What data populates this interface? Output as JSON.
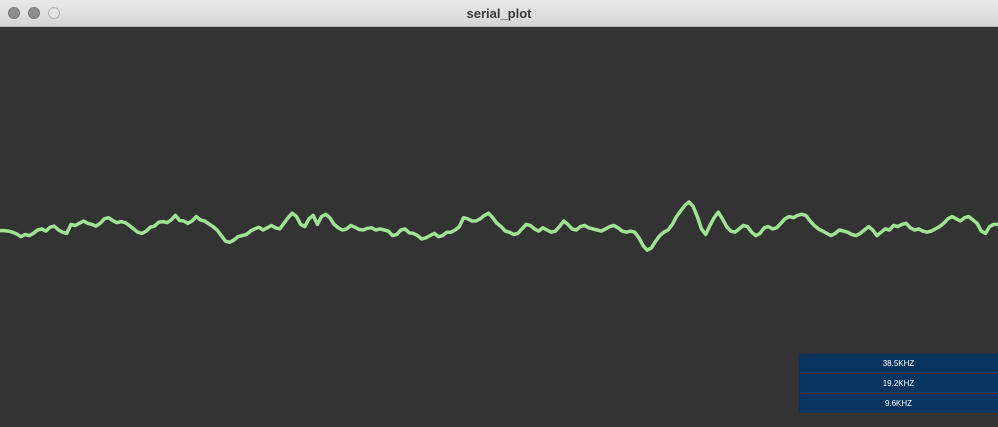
{
  "window": {
    "title": "serial_plot"
  },
  "plot": {
    "line_color": "#9ee493",
    "background_color": "#333333"
  },
  "baud_buttons": [
    {
      "label": "38.5KHZ"
    },
    {
      "label": "19.2KHZ"
    },
    {
      "label": "9.6KHZ"
    }
  ],
  "colors": {
    "button_bg": "#083560",
    "button_text": "#ffffff"
  },
  "chart_data": {
    "type": "line",
    "series": [
      {
        "values": [
          0.49,
          0.49,
          0.48,
          0.46,
          0.43,
          0.38,
          0.42,
          0.4,
          0.44,
          0.5,
          0.52,
          0.48,
          0.55,
          0.57,
          0.5,
          0.46,
          0.44,
          0.6,
          0.58,
          0.62,
          0.66,
          0.62,
          0.6,
          0.57,
          0.62,
          0.7,
          0.72,
          0.67,
          0.63,
          0.65,
          0.63,
          0.58,
          0.52,
          0.46,
          0.44,
          0.48,
          0.55,
          0.57,
          0.64,
          0.65,
          0.63,
          0.68,
          0.76,
          0.67,
          0.66,
          0.62,
          0.66,
          0.74,
          0.68,
          0.66,
          0.61,
          0.56,
          0.5,
          0.4,
          0.3,
          0.28,
          0.32,
          0.38,
          0.4,
          0.42,
          0.48,
          0.52,
          0.55,
          0.5,
          0.54,
          0.58,
          0.54,
          0.52,
          0.62,
          0.72,
          0.8,
          0.74,
          0.6,
          0.56,
          0.7,
          0.76,
          0.6,
          0.74,
          0.78,
          0.72,
          0.6,
          0.54,
          0.5,
          0.52,
          0.58,
          0.55,
          0.51,
          0.5,
          0.53,
          0.54,
          0.5,
          0.52,
          0.5,
          0.48,
          0.4,
          0.42,
          0.5,
          0.52,
          0.45,
          0.44,
          0.4,
          0.34,
          0.36,
          0.4,
          0.44,
          0.38,
          0.4,
          0.46,
          0.46,
          0.5,
          0.56,
          0.72,
          0.7,
          0.66,
          0.66,
          0.7,
          0.76,
          0.8,
          0.72,
          0.62,
          0.56,
          0.48,
          0.46,
          0.42,
          0.44,
          0.52,
          0.6,
          0.58,
          0.52,
          0.48,
          0.54,
          0.5,
          0.46,
          0.48,
          0.56,
          0.66,
          0.6,
          0.52,
          0.5,
          0.56,
          0.58,
          0.54,
          0.52,
          0.5,
          0.48,
          0.52,
          0.56,
          0.58,
          0.54,
          0.48,
          0.46,
          0.48,
          0.46,
          0.36,
          0.22,
          0.14,
          0.18,
          0.3,
          0.4,
          0.46,
          0.5,
          0.6,
          0.74,
          0.84,
          0.94,
          1.0,
          0.92,
          0.74,
          0.52,
          0.42,
          0.58,
          0.72,
          0.82,
          0.7,
          0.56,
          0.48,
          0.46,
          0.52,
          0.58,
          0.56,
          0.46,
          0.4,
          0.44,
          0.54,
          0.56,
          0.52,
          0.54,
          0.62,
          0.7,
          0.74,
          0.72,
          0.76,
          0.78,
          0.76,
          0.66,
          0.58,
          0.52,
          0.48,
          0.44,
          0.4,
          0.44,
          0.5,
          0.48,
          0.46,
          0.42,
          0.4,
          0.44,
          0.5,
          0.56,
          0.5,
          0.4,
          0.46,
          0.52,
          0.5,
          0.58,
          0.56,
          0.6,
          0.62,
          0.54,
          0.5,
          0.52,
          0.48,
          0.46,
          0.48,
          0.52,
          0.56,
          0.62,
          0.7,
          0.74,
          0.7,
          0.66,
          0.72,
          0.74,
          0.68,
          0.62,
          0.48,
          0.44,
          0.56,
          0.6,
          0.6
        ]
      }
    ],
    "ylim": [
      0,
      1
    ],
    "grid": false
  }
}
